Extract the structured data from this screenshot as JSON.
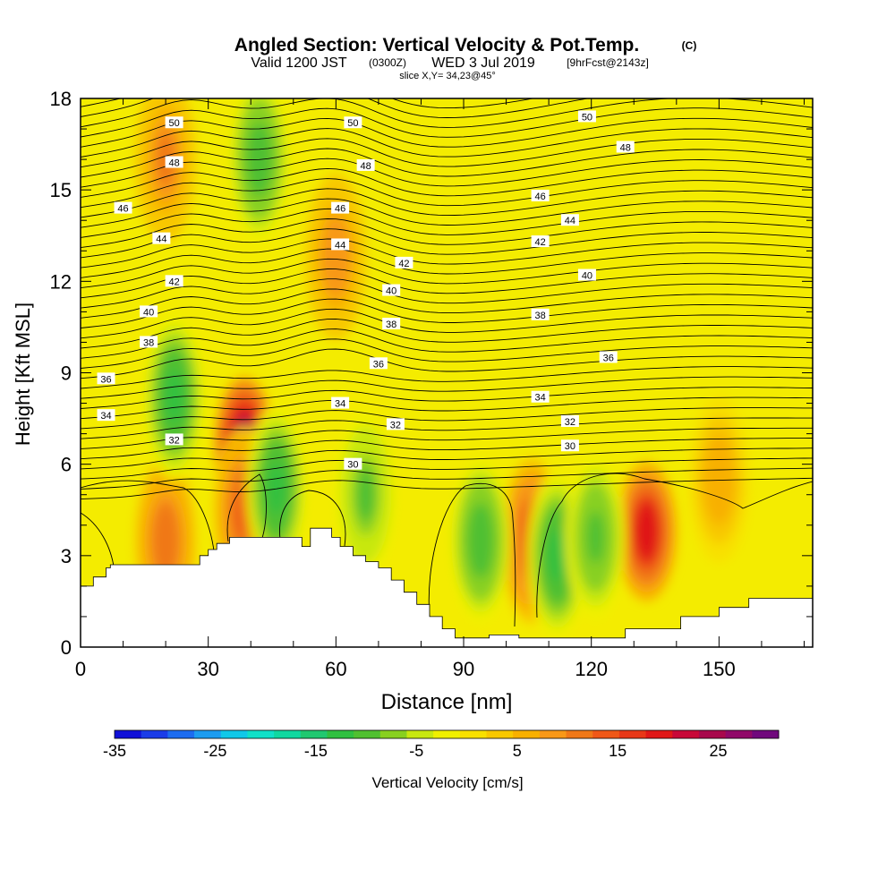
{
  "header": {
    "title": "Angled Section: Vertical Velocity & Pot.Temp.",
    "copyright": "(C)",
    "valid_main": "Valid 1200 JST",
    "valid_utc": "(0300Z)",
    "valid_date": "WED 3 Jul 2019",
    "valid_fcst": "[9hrFcst@2143z]",
    "slice": "slice X,Y= 34,23@45°"
  },
  "chart_data": {
    "type": "heatmap",
    "xlabel": "Distance [nm]",
    "ylabel": "Height [Kft MSL]",
    "xlim": [
      0,
      172
    ],
    "ylim": [
      0,
      18
    ],
    "x_ticks": [
      0,
      30,
      60,
      90,
      120,
      150
    ],
    "x_tick_labels": [
      "0",
      "30",
      "60",
      "90",
      "120",
      "150"
    ],
    "y_ticks": [
      0,
      3,
      6,
      9,
      12,
      15,
      18
    ],
    "y_tick_labels": [
      "0",
      "3",
      "6",
      "9",
      "12",
      "15",
      "18"
    ],
    "colorbar": {
      "label": "Vertical Velocity [cm/s]",
      "min": -35,
      "max": 31,
      "tick_values": [
        -35,
        -25,
        -15,
        -5,
        5,
        15,
        25
      ],
      "tick_labels": [
        "-35",
        "-25",
        "-15",
        "-5",
        "5",
        "15",
        "25"
      ],
      "colors": [
        "#1010d8",
        "#1a3ce8",
        "#1c6cf0",
        "#1c9cf0",
        "#10c8e8",
        "#10e0c8",
        "#10d8a0",
        "#20c870",
        "#30c040",
        "#50c030",
        "#88d020",
        "#c8e810",
        "#f0f000",
        "#f8e000",
        "#f8c800",
        "#f8b000",
        "#f89818",
        "#f07818",
        "#f05818",
        "#e83818",
        "#e01818",
        "#c80838",
        "#a8084c",
        "#900868",
        "#70087c"
      ]
    },
    "velocity_features": [
      {
        "x": 38.5,
        "y": 6.6,
        "w": 25
      },
      {
        "x": 38.5,
        "y": 4.5,
        "w": 14
      },
      {
        "x": 133,
        "y": 3.8,
        "w": 20
      },
      {
        "x": 106,
        "y": 3.5,
        "w": 15
      },
      {
        "x": 20,
        "y": 3.5,
        "w": 12
      },
      {
        "x": 20,
        "y": 16,
        "w": 10
      },
      {
        "x": 22,
        "y": 8.2,
        "w": -13
      },
      {
        "x": 46,
        "y": 5.2,
        "w": -13
      },
      {
        "x": 42,
        "y": 16,
        "w": -11
      },
      {
        "x": 94,
        "y": 3.5,
        "w": -11
      },
      {
        "x": 112,
        "y": 3.0,
        "w": -13
      },
      {
        "x": 121,
        "y": 3.6,
        "w": -10
      },
      {
        "x": 67,
        "y": 5.0,
        "w": -9
      },
      {
        "x": 60,
        "y": 12.8,
        "w": 9
      },
      {
        "x": 150,
        "y": 5.5,
        "w": 7
      }
    ],
    "potential_temperature_labels": [
      {
        "x": 22,
        "y": 17.2,
        "text": "50"
      },
      {
        "x": 64,
        "y": 17.2,
        "text": "50"
      },
      {
        "x": 119,
        "y": 17.4,
        "text": "50"
      },
      {
        "x": 22,
        "y": 15.9,
        "text": "48"
      },
      {
        "x": 67,
        "y": 15.8,
        "text": "48"
      },
      {
        "x": 128,
        "y": 16.4,
        "text": "48"
      },
      {
        "x": 10,
        "y": 14.4,
        "text": "46"
      },
      {
        "x": 61,
        "y": 14.4,
        "text": "46"
      },
      {
        "x": 108,
        "y": 14.8,
        "text": "46"
      },
      {
        "x": 19,
        "y": 13.4,
        "text": "44"
      },
      {
        "x": 61,
        "y": 13.2,
        "text": "44"
      },
      {
        "x": 115,
        "y": 14.0,
        "text": "44"
      },
      {
        "x": 22,
        "y": 12.0,
        "text": "42"
      },
      {
        "x": 76,
        "y": 12.6,
        "text": "42"
      },
      {
        "x": 108,
        "y": 13.3,
        "text": "42"
      },
      {
        "x": 16,
        "y": 11.0,
        "text": "40"
      },
      {
        "x": 73,
        "y": 11.7,
        "text": "40"
      },
      {
        "x": 119,
        "y": 12.2,
        "text": "40"
      },
      {
        "x": 16,
        "y": 10.0,
        "text": "38"
      },
      {
        "x": 73,
        "y": 10.6,
        "text": "38"
      },
      {
        "x": 108,
        "y": 10.9,
        "text": "38"
      },
      {
        "x": 6,
        "y": 8.8,
        "text": "36"
      },
      {
        "x": 70,
        "y": 9.3,
        "text": "36"
      },
      {
        "x": 124,
        "y": 9.5,
        "text": "36"
      },
      {
        "x": 6,
        "y": 7.6,
        "text": "34"
      },
      {
        "x": 61,
        "y": 8.0,
        "text": "34"
      },
      {
        "x": 108,
        "y": 8.2,
        "text": "34"
      },
      {
        "x": 22,
        "y": 6.8,
        "text": "32"
      },
      {
        "x": 74,
        "y": 7.3,
        "text": "32"
      },
      {
        "x": 115,
        "y": 7.4,
        "text": "32"
      },
      {
        "x": 64,
        "y": 6.0,
        "text": "30"
      },
      {
        "x": 115,
        "y": 6.6,
        "text": "30"
      }
    ],
    "terrain": [
      [
        0,
        2.0
      ],
      [
        3,
        2.0
      ],
      [
        3,
        2.3
      ],
      [
        6,
        2.3
      ],
      [
        6,
        2.6
      ],
      [
        7,
        2.6
      ],
      [
        7,
        2.7
      ],
      [
        28,
        2.7
      ],
      [
        28,
        3.0
      ],
      [
        30,
        3.0
      ],
      [
        30,
        3.2
      ],
      [
        32,
        3.2
      ],
      [
        32,
        3.4
      ],
      [
        35,
        3.4
      ],
      [
        35,
        3.6
      ],
      [
        52,
        3.6
      ],
      [
        52,
        3.3
      ],
      [
        54,
        3.3
      ],
      [
        54,
        3.9
      ],
      [
        59,
        3.9
      ],
      [
        59,
        3.6
      ],
      [
        61,
        3.6
      ],
      [
        61,
        3.3
      ],
      [
        64,
        3.3
      ],
      [
        64,
        3.0
      ],
      [
        67,
        3.0
      ],
      [
        67,
        2.8
      ],
      [
        70,
        2.8
      ],
      [
        70,
        2.6
      ],
      [
        73,
        2.6
      ],
      [
        73,
        2.2
      ],
      [
        76,
        2.2
      ],
      [
        76,
        1.8
      ],
      [
        79,
        1.8
      ],
      [
        79,
        1.4
      ],
      [
        82,
        1.4
      ],
      [
        82,
        1.0
      ],
      [
        85,
        1.0
      ],
      [
        85,
        0.6
      ],
      [
        88,
        0.6
      ],
      [
        88,
        0.3
      ],
      [
        96,
        0.3
      ],
      [
        96,
        0.4
      ],
      [
        103,
        0.4
      ],
      [
        103,
        0.3
      ],
      [
        128,
        0.3
      ],
      [
        128,
        0.6
      ],
      [
        141,
        0.6
      ],
      [
        141,
        1.0
      ],
      [
        150,
        1.0
      ],
      [
        150,
        1.3
      ],
      [
        157,
        1.3
      ],
      [
        157,
        1.6
      ],
      [
        172,
        1.6
      ]
    ]
  }
}
